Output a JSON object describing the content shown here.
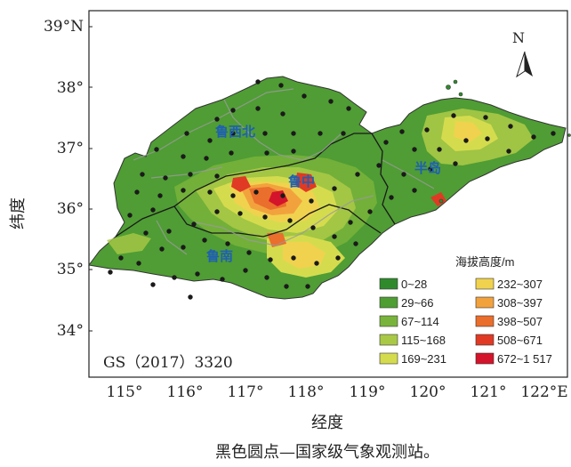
{
  "map": {
    "lat_ticks": [
      "39°N",
      "38°",
      "37°",
      "36°",
      "35°",
      "34°"
    ],
    "lon_ticks": [
      "115°",
      "116°",
      "117°",
      "118°",
      "119°",
      "120°",
      "121°",
      "122°E"
    ],
    "y_axis_label": "纬度",
    "x_axis_label": "经度",
    "caption": "黑色圆点—国家级气象观测站。",
    "map_id": "GS（2017）3320",
    "north_label": "N",
    "regions": [
      "鲁西北",
      "鲁中",
      "半岛",
      "鲁南"
    ]
  },
  "legend": {
    "title": "海拔高度/m",
    "items": [
      {
        "label": "0~28",
        "color": "#2f8a2c"
      },
      {
        "label": "29~66",
        "color": "#4e9e33"
      },
      {
        "label": "67~114",
        "color": "#78b43b"
      },
      {
        "label": "115~168",
        "color": "#a9c946"
      },
      {
        "label": "169~231",
        "color": "#d4dc4e"
      },
      {
        "label": "232~307",
        "color": "#f0d24e"
      },
      {
        "label": "308~397",
        "color": "#f2a23d"
      },
      {
        "label": "398~507",
        "color": "#ea6e2c"
      },
      {
        "label": "508~671",
        "color": "#e03a24"
      },
      {
        "label": "672~1 517",
        "color": "#d4142a"
      }
    ]
  }
}
